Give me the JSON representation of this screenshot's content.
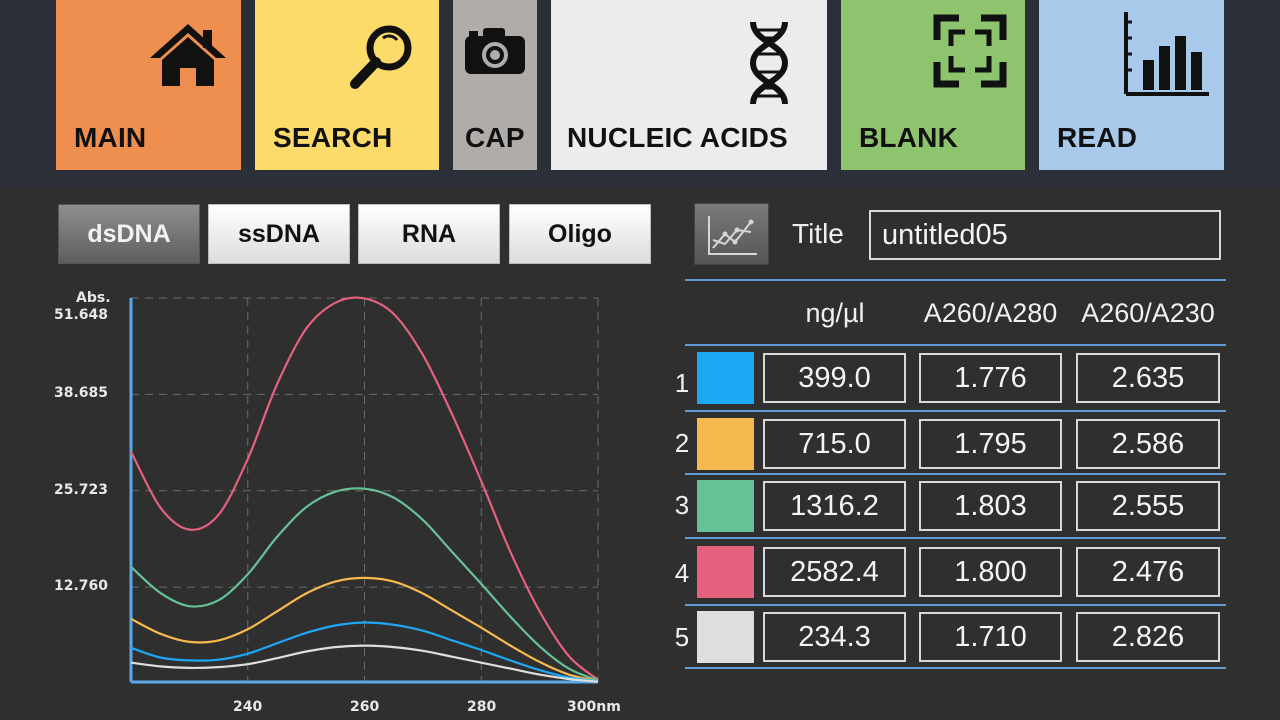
{
  "nav": {
    "main": "MAIN",
    "search": "SEARCH",
    "cap": "CAP",
    "nucleic_acids": "NUCLEIC ACIDS",
    "blank": "BLANK",
    "read": "READ"
  },
  "sample_types": {
    "dsdna": "dsDNA",
    "ssdna": "ssDNA",
    "rna": "RNA",
    "oligo": "Oligo",
    "selected": "dsDNA"
  },
  "title_field": {
    "label": "Title",
    "value": "untitled05"
  },
  "table": {
    "headers": [
      "ng/µl",
      "A260/A280",
      "A260/A230"
    ],
    "rows": [
      {
        "num": "1",
        "color": "#1ea7f4",
        "ng": "399.0",
        "a280": "1.776",
        "a230": "2.635"
      },
      {
        "num": "2",
        "color": "#f6b94e",
        "ng": "715.0",
        "a280": "1.795",
        "a230": "2.586"
      },
      {
        "num": "3",
        "color": "#66c296",
        "ng": "1316.2",
        "a280": "1.803",
        "a230": "2.555"
      },
      {
        "num": "4",
        "color": "#e6617e",
        "ng": "2582.4",
        "a280": "1.800",
        "a230": "2.476"
      },
      {
        "num": "5",
        "color": "#dedede",
        "ng": "234.3",
        "a280": "1.710",
        "a230": "2.826"
      }
    ]
  },
  "chart_data": {
    "type": "line",
    "ylabel": "Abs.",
    "y_ticks": [
      "51.648",
      "38.685",
      "25.723",
      "12.760"
    ],
    "x_ticks": [
      "240",
      "260",
      "280",
      "300nm"
    ],
    "xlim": [
      220,
      300
    ],
    "ylim": [
      0,
      51.648
    ],
    "grid": true,
    "x": [
      220,
      225,
      230,
      235,
      240,
      245,
      250,
      255,
      260,
      265,
      270,
      275,
      280,
      285,
      290,
      295,
      300
    ],
    "series": [
      {
        "color": "#e6617e",
        "values": [
          31.0,
          23.5,
          20.5,
          22.5,
          30.0,
          40.0,
          47.5,
          51.0,
          51.6,
          49.5,
          44.0,
          36.0,
          27.0,
          17.5,
          9.5,
          3.5,
          0.3
        ]
      },
      {
        "color": "#66c296",
        "values": [
          15.5,
          12.0,
          10.2,
          11.0,
          14.5,
          19.5,
          23.5,
          25.6,
          26.0,
          24.8,
          21.8,
          17.5,
          13.2,
          8.8,
          4.8,
          1.8,
          0.2
        ]
      },
      {
        "color": "#f6b94e",
        "values": [
          8.5,
          6.5,
          5.4,
          5.6,
          7.1,
          9.5,
          11.9,
          13.5,
          14.0,
          13.5,
          11.9,
          9.6,
          7.3,
          4.9,
          2.7,
          1.0,
          0.1
        ]
      },
      {
        "color": "#1ea7f4",
        "values": [
          4.6,
          3.3,
          2.9,
          3.0,
          3.8,
          5.2,
          6.6,
          7.6,
          8.0,
          7.7,
          6.9,
          5.6,
          4.3,
          2.9,
          1.6,
          0.6,
          0.1
        ]
      },
      {
        "color": "#dedede",
        "values": [
          2.6,
          2.1,
          1.9,
          2.0,
          2.4,
          3.2,
          4.1,
          4.7,
          4.9,
          4.7,
          4.2,
          3.4,
          2.6,
          1.8,
          1.0,
          0.4,
          0.05
        ]
      }
    ]
  }
}
